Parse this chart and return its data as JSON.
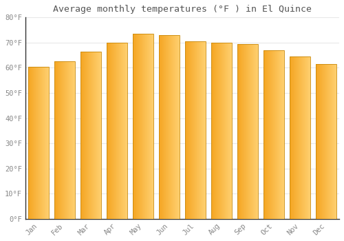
{
  "title": "Average monthly temperatures (°F ) in El Quince",
  "months": [
    "Jan",
    "Feb",
    "Mar",
    "Apr",
    "May",
    "Jun",
    "Jul",
    "Aug",
    "Sep",
    "Oct",
    "Nov",
    "Dec"
  ],
  "values": [
    60.5,
    62.5,
    66.5,
    70.0,
    73.5,
    73.0,
    70.5,
    70.0,
    69.5,
    67.0,
    64.5,
    61.5
  ],
  "bar_color_left": "#F5A623",
  "bar_color_right": "#FFD070",
  "bar_color_edge": "#C8880A",
  "ylim": [
    0,
    80
  ],
  "yticks": [
    0,
    10,
    20,
    30,
    40,
    50,
    60,
    70,
    80
  ],
  "ytick_labels": [
    "0°F",
    "10°F",
    "20°F",
    "30°F",
    "40°F",
    "50°F",
    "60°F",
    "70°F",
    "80°F"
  ],
  "background_color": "#ffffff",
  "grid_color": "#e8e8e8",
  "text_color": "#888888",
  "title_color": "#555555",
  "font_family": "monospace",
  "bar_width": 0.78,
  "figsize": [
    5.0,
    3.5
  ],
  "dpi": 100
}
